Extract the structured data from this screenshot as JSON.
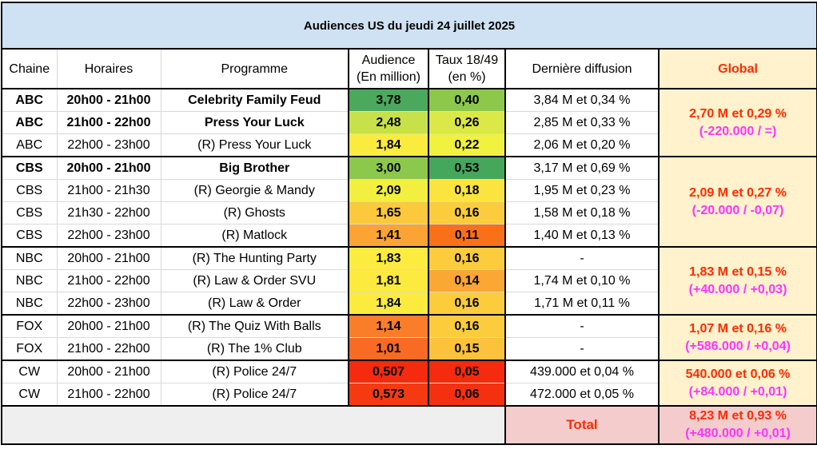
{
  "title": "Audiences US du jeudi 24 juillet 2025",
  "headers": {
    "chaine": "Chaine",
    "horaires": "Horaires",
    "programme": "Programme",
    "audience_l1": "Audience",
    "audience_l2": "(En million)",
    "taux_l1": "Taux 18/49",
    "taux_l2": "(en %)",
    "derniere": "Dernière diffusion",
    "global": "Global"
  },
  "groups": [
    {
      "global": "2,70 M et 0,29 %",
      "delta": "(-220.000 / =)",
      "rows": [
        {
          "chaine": "ABC",
          "horaire": "20h00 - 21h00",
          "programme": "Celebrity Family Feud",
          "audience": "3,78",
          "audience_color": "#4aa95d",
          "taux": "0,40",
          "taux_color": "#8dc84b",
          "derniere": "3,84 M et 0,34 %",
          "bold": true
        },
        {
          "chaine": "ABC",
          "horaire": "21h00 - 22h00",
          "programme": "Press Your Luck",
          "audience": "2,48",
          "audience_color": "#c8e04a",
          "taux": "0,26",
          "taux_color": "#dbe848",
          "derniere": "2,85 M et 0,33 %",
          "bold": true
        },
        {
          "chaine": "ABC",
          "horaire": "22h00 - 23h00",
          "programme": "(R) Press Your Luck",
          "audience": "1,84",
          "audience_color": "#fbeb3f",
          "taux": "0,22",
          "taux_color": "#f1f13f",
          "derniere": "2,06 M et 0,20 %",
          "bold": false
        }
      ]
    },
    {
      "global": "2,09 M et 0,27 %",
      "delta": "(-20.000 / -0,07)",
      "rows": [
        {
          "chaine": "CBS",
          "horaire": "20h00 - 21h00",
          "programme": "Big Brother",
          "audience": "3,00",
          "audience_color": "#8cc84b",
          "taux": "0,53",
          "taux_color": "#45a75c",
          "derniere": "3,17 M et 0,69 %",
          "bold": true
        },
        {
          "chaine": "CBS",
          "horaire": "21h00 - 21h30",
          "programme": "(R) Georgie & Mandy",
          "audience": "2,09",
          "audience_color": "#f2ef40",
          "taux": "0,18",
          "taux_color": "#fce440",
          "derniere": "1,95 M et 0,23 %",
          "bold": false
        },
        {
          "chaine": "CBS",
          "horaire": "21h30 - 22h00",
          "programme": "(R) Ghosts",
          "audience": "1,65",
          "audience_color": "#fcc83c",
          "taux": "0,16",
          "taux_color": "#fccc3c",
          "derniere": "1,58 M et 0,18 %",
          "bold": false
        },
        {
          "chaine": "CBS",
          "horaire": "22h00 - 23h00",
          "programme": "(R) Matlock",
          "audience": "1,41",
          "audience_color": "#fba333",
          "taux": "0,11",
          "taux_color": "#f97018",
          "derniere": "1,40 M et 0,13 %",
          "bold": false
        }
      ]
    },
    {
      "global": "1,83 M et 0,15 %",
      "delta": "(+40.000 / +0,03)",
      "rows": [
        {
          "chaine": "NBC",
          "horaire": "20h00 - 21h00",
          "programme": "(R) The Hunting Party",
          "audience": "1,83",
          "audience_color": "#fcec3f",
          "taux": "0,16",
          "taux_color": "#fccc3c",
          "derniere": "-",
          "bold": false
        },
        {
          "chaine": "NBC",
          "horaire": "21h00 - 22h00",
          "programme": "(R) Law & Order SVU",
          "audience": "1,81",
          "audience_color": "#fcea3f",
          "taux": "0,14",
          "taux_color": "#fba733",
          "derniere": "1,74 M et 0,10 %",
          "bold": false
        },
        {
          "chaine": "NBC",
          "horaire": "22h00 - 23h00",
          "programme": "(R) Law & Order",
          "audience": "1,84",
          "audience_color": "#fbeb3f",
          "taux": "0,16",
          "taux_color": "#fccc3c",
          "derniere": "1,71 M et 0,11 %",
          "bold": false
        }
      ]
    },
    {
      "global": "1,07 M et 0,16 %",
      "delta": "(+586.000 / +0,04)",
      "rows": [
        {
          "chaine": "FOX",
          "horaire": "20h00 - 21h00",
          "programme": "(R) The Quiz With Balls",
          "audience": "1,14",
          "audience_color": "#fa7e2a",
          "taux": "0,16",
          "taux_color": "#fccc3c",
          "derniere": "-",
          "bold": false
        },
        {
          "chaine": "FOX",
          "horaire": "21h00 - 22h00",
          "programme": "(R) The 1% Club",
          "audience": "1,01",
          "audience_color": "#f96a23",
          "taux": "0,15",
          "taux_color": "#fcc23b",
          "derniere": "-",
          "bold": false
        }
      ]
    },
    {
      "global": "540.000 et 0,06 %",
      "delta": "(+84.000 / +0,01)",
      "rows": [
        {
          "chaine": "CW",
          "horaire": "20h00 - 21h00",
          "programme": "(R) Police 24/7",
          "audience": "0,507",
          "audience_color": "#f52a0e",
          "taux": "0,05",
          "taux_color": "#f52a0e",
          "derniere": "439.000 et 0,04 %",
          "bold": false
        },
        {
          "chaine": "CW",
          "horaire": "21h00 - 22h00",
          "programme": "(R) Police 24/7",
          "audience": "0,573",
          "audience_color": "#f53a12",
          "taux": "0,06",
          "taux_color": "#f53010",
          "derniere": "472.000 et 0,05 %",
          "bold": false
        }
      ]
    }
  ],
  "total": {
    "label": "Total",
    "value": "8,23 M et 0,93 %",
    "delta": "(+480.000 / +0,01)"
  }
}
